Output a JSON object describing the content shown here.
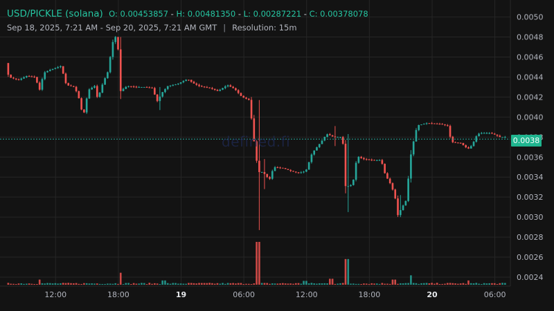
{
  "header": {
    "symbol": "USD/PICKLE (solana)",
    "o_label": "O:",
    "o_value": "0.00453857",
    "h_label": "H:",
    "h_value": "0.00481350",
    "l_label": "L:",
    "l_value": "0.00287221",
    "c_label": "C:",
    "c_value": "0.00378078",
    "range": "Sep 18, 2025, 7:21 AM - Sep 20, 2025, 7:21 AM GMT",
    "separator": "|",
    "resolution": "Resolution: 15m"
  },
  "watermark": "defined.fi",
  "last_price_label": "0.0038",
  "colors": {
    "background": "#131313",
    "up": "#26a69a",
    "down": "#ef5350",
    "grid": "#262626",
    "text": "#d1d4dc",
    "price_line": "#26a69a"
  },
  "chart_data": {
    "type": "candlestick",
    "x_ticks": [
      {
        "label": "12:00",
        "t": 4.65
      },
      {
        "label": "18:00",
        "t": 10.65
      },
      {
        "label": "19",
        "t": 16.65,
        "bold": true
      },
      {
        "label": "06:00",
        "t": 22.65
      },
      {
        "label": "12:00",
        "t": 28.65
      },
      {
        "label": "18:00",
        "t": 34.65
      },
      {
        "label": "20",
        "t": 40.65,
        "bold": true
      },
      {
        "label": "06:00",
        "t": 46.65
      }
    ],
    "x_range_hours": [
      0,
      48
    ],
    "y_ticks": [
      "0.0024",
      "0.0026",
      "0.0028",
      "0.0030",
      "0.0032",
      "0.0034",
      "0.0036",
      "0.0038",
      "0.0040",
      "0.0042",
      "0.0044",
      "0.0046",
      "0.0048",
      "0.0050"
    ],
    "ylim": [
      0.00231,
      0.00517
    ],
    "last_price": 0.00378,
    "grid": true,
    "anchors": [
      [
        0,
        0.00454
      ],
      [
        0.3,
        0.0044
      ],
      [
        1.2,
        0.00437
      ],
      [
        2.0,
        0.00441
      ],
      [
        2.8,
        0.0044
      ],
      [
        3.3,
        0.00426
      ],
      [
        3.6,
        0.00444
      ],
      [
        4.2,
        0.00447
      ],
      [
        5.3,
        0.00451
      ],
      [
        5.8,
        0.00432
      ],
      [
        6.6,
        0.0043
      ],
      [
        7.1,
        0.00416
      ],
      [
        7.4,
        0.00399
      ],
      [
        7.9,
        0.00427
      ],
      [
        8.5,
        0.00431
      ],
      [
        8.8,
        0.00418
      ],
      [
        9.3,
        0.00434
      ],
      [
        9.8,
        0.00446
      ],
      [
        10.2,
        0.00474
      ],
      [
        10.5,
        0.0048
      ],
      [
        10.7,
        0.00476
      ],
      [
        11.0,
        0.00426
      ],
      [
        11.6,
        0.00431
      ],
      [
        12.5,
        0.0043
      ],
      [
        13.3,
        0.0043
      ],
      [
        14.0,
        0.00429
      ],
      [
        14.5,
        0.00416
      ],
      [
        15.0,
        0.00425
      ],
      [
        15.5,
        0.00431
      ],
      [
        16.4,
        0.00433
      ],
      [
        17.4,
        0.00438
      ],
      [
        17.9,
        0.00434
      ],
      [
        18.5,
        0.00431
      ],
      [
        19.5,
        0.00429
      ],
      [
        20.3,
        0.00426
      ],
      [
        21.2,
        0.00432
      ],
      [
        21.9,
        0.00428
      ],
      [
        22.6,
        0.0042
      ],
      [
        23.3,
        0.00417
      ],
      [
        23.9,
        0.00362
      ],
      [
        24.2,
        0.00345
      ],
      [
        24.6,
        0.00345
      ],
      [
        25.0,
        0.0034
      ],
      [
        25.3,
        0.00338
      ],
      [
        25.6,
        0.0035
      ],
      [
        26.5,
        0.00349
      ],
      [
        27.3,
        0.00346
      ],
      [
        28.0,
        0.00344
      ],
      [
        28.7,
        0.00346
      ],
      [
        29.3,
        0.00364
      ],
      [
        30.0,
        0.00373
      ],
      [
        30.7,
        0.00383
      ],
      [
        31.4,
        0.0038
      ],
      [
        32.0,
        0.0038
      ],
      [
        32.3,
        0.00372
      ],
      [
        32.5,
        0.00331
      ],
      [
        32.9,
        0.00331
      ],
      [
        33.2,
        0.00334
      ],
      [
        33.6,
        0.00361
      ],
      [
        34.2,
        0.00358
      ],
      [
        35.1,
        0.00357
      ],
      [
        35.9,
        0.00357
      ],
      [
        36.3,
        0.00342
      ],
      [
        36.8,
        0.00333
      ],
      [
        37.2,
        0.00322
      ],
      [
        37.5,
        0.00302
      ],
      [
        37.8,
        0.00308
      ],
      [
        38.3,
        0.00317
      ],
      [
        38.7,
        0.0036
      ],
      [
        39.2,
        0.00386
      ],
      [
        39.5,
        0.00392
      ],
      [
        40.3,
        0.00394
      ],
      [
        41.6,
        0.00393
      ],
      [
        42.3,
        0.00391
      ],
      [
        42.6,
        0.00375
      ],
      [
        43.5,
        0.00374
      ],
      [
        44.2,
        0.00368
      ],
      [
        44.6,
        0.00372
      ],
      [
        45.1,
        0.00383
      ],
      [
        45.5,
        0.00384
      ],
      [
        46.3,
        0.00384
      ],
      [
        46.9,
        0.00382
      ],
      [
        47.2,
        0.0038
      ],
      [
        47.6,
        0.0038
      ]
    ],
    "spikes": [
      {
        "t": 10.35,
        "high": 0.00481,
        "low": 0.00473
      },
      {
        "t": 10.85,
        "high": 0.0048,
        "low": 0.00418
      },
      {
        "t": 24.0,
        "high": 0.00417,
        "low": 0.00287
      },
      {
        "t": 24.45,
        "high": 0.00358,
        "low": 0.00328
      },
      {
        "t": 31.2,
        "high": 0.00391,
        "low": 0.00371
      },
      {
        "t": 32.55,
        "high": 0.00383,
        "low": 0.00305
      },
      {
        "t": 37.6,
        "high": 0.00322,
        "low": 0.003
      },
      {
        "t": 14.6,
        "high": 0.0043,
        "low": 0.00407
      }
    ],
    "volume_spikes": [
      {
        "t": 24.0,
        "v": 1.0
      },
      {
        "t": 32.5,
        "v": 0.6
      },
      {
        "t": 10.8,
        "v": 0.28
      },
      {
        "t": 38.6,
        "v": 0.22
      },
      {
        "t": 3.2,
        "v": 0.12
      },
      {
        "t": 15.0,
        "v": 0.1
      },
      {
        "t": 28.5,
        "v": 0.09
      },
      {
        "t": 31.0,
        "v": 0.14
      },
      {
        "t": 37.0,
        "v": 0.12
      },
      {
        "t": 44.2,
        "v": 0.1
      }
    ]
  }
}
